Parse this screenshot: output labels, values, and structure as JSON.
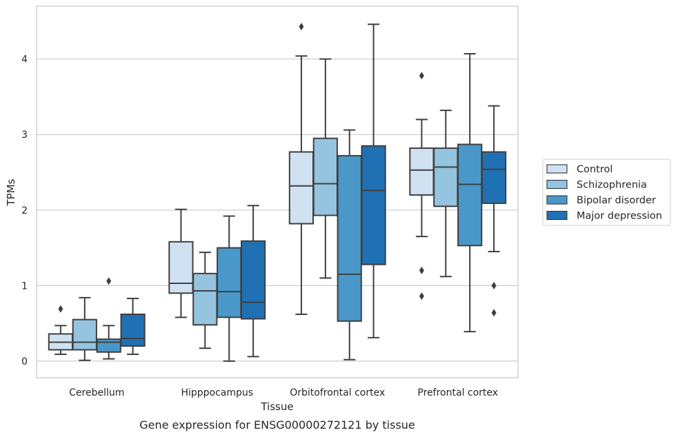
{
  "caption": "Gene expression for ENSG00000272121 by tissue",
  "chart_data": {
    "type": "boxplot",
    "xlabel": "Tissue",
    "ylabel": "TPMs",
    "ylim": [
      -0.22,
      4.7
    ],
    "yticks": [
      0,
      1,
      2,
      3,
      4
    ],
    "grid": "horizontal",
    "legend_position": "right",
    "categories": [
      "Cerebellum",
      "Hipppocampus",
      "Orbitofrontal cortex",
      "Prefrontal cortex"
    ],
    "series": [
      {
        "name": "Control",
        "color": "#d0e1f2",
        "boxes": [
          {
            "whislo": 0.09,
            "q1": 0.15,
            "med": 0.25,
            "q3": 0.36,
            "whishi": 0.47,
            "fliers": [
              0.69
            ]
          },
          {
            "whislo": 0.58,
            "q1": 0.9,
            "med": 1.03,
            "q3": 1.58,
            "whishi": 2.01,
            "fliers": []
          },
          {
            "whislo": 0.62,
            "q1": 1.82,
            "med": 2.32,
            "q3": 2.77,
            "whishi": 4.04,
            "fliers": [
              4.43
            ]
          },
          {
            "whislo": 1.65,
            "q1": 2.2,
            "med": 2.53,
            "q3": 2.82,
            "whishi": 3.2,
            "fliers": [
              3.78,
              1.2,
              0.86
            ]
          }
        ]
      },
      {
        "name": "Schizophrenia",
        "color": "#94c4df",
        "boxes": [
          {
            "whislo": 0.01,
            "q1": 0.15,
            "med": 0.25,
            "q3": 0.55,
            "whishi": 0.84,
            "fliers": []
          },
          {
            "whislo": 0.17,
            "q1": 0.48,
            "med": 0.93,
            "q3": 1.16,
            "whishi": 1.44,
            "fliers": []
          },
          {
            "whislo": 1.1,
            "q1": 1.93,
            "med": 2.35,
            "q3": 2.95,
            "whishi": 4.0,
            "fliers": []
          },
          {
            "whislo": 1.12,
            "q1": 2.05,
            "med": 2.57,
            "q3": 2.82,
            "whishi": 3.32,
            "fliers": []
          }
        ]
      },
      {
        "name": "Bipolar disorder",
        "color": "#4a98c9",
        "boxes": [
          {
            "whislo": 0.03,
            "q1": 0.12,
            "med": 0.25,
            "q3": 0.29,
            "whishi": 0.47,
            "fliers": [
              1.06
            ]
          },
          {
            "whislo": 0.0,
            "q1": 0.58,
            "med": 0.92,
            "q3": 1.5,
            "whishi": 1.92,
            "fliers": []
          },
          {
            "whislo": 0.02,
            "q1": 0.53,
            "med": 1.15,
            "q3": 2.72,
            "whishi": 3.06,
            "fliers": []
          },
          {
            "whislo": 0.39,
            "q1": 1.53,
            "med": 2.34,
            "q3": 2.87,
            "whishi": 4.07,
            "fliers": []
          }
        ]
      },
      {
        "name": "Major depression",
        "color": "#2070b4",
        "boxes": [
          {
            "whislo": 0.09,
            "q1": 0.2,
            "med": 0.3,
            "q3": 0.62,
            "whishi": 0.83,
            "fliers": []
          },
          {
            "whislo": 0.06,
            "q1": 0.56,
            "med": 0.78,
            "q3": 1.59,
            "whishi": 2.06,
            "fliers": []
          },
          {
            "whislo": 0.31,
            "q1": 1.28,
            "med": 2.26,
            "q3": 2.85,
            "whishi": 4.46,
            "fliers": []
          },
          {
            "whislo": 1.45,
            "q1": 2.09,
            "med": 2.54,
            "q3": 2.77,
            "whishi": 3.38,
            "fliers": [
              1.0,
              0.64
            ]
          }
        ]
      }
    ]
  }
}
